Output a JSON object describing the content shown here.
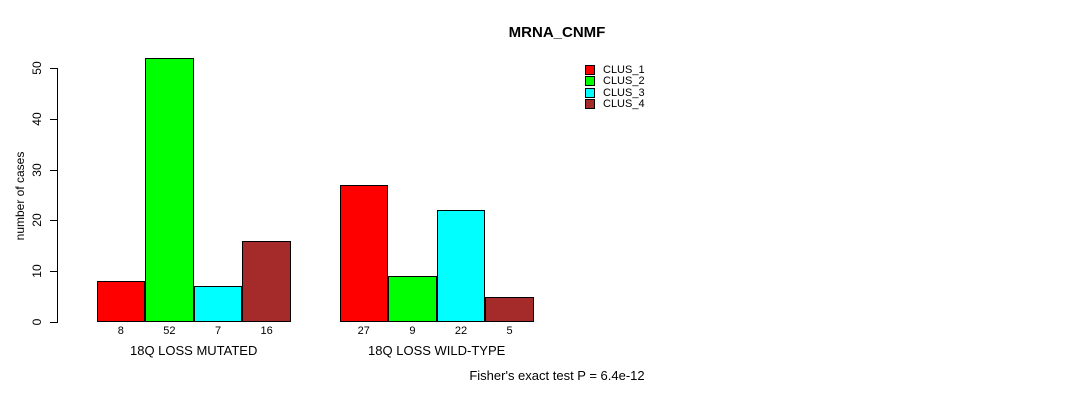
{
  "chart_data": {
    "type": "bar",
    "title": "MRNA_CNMF",
    "ylabel": "number of cases",
    "xlabel": "",
    "ylim": [
      0,
      50
    ],
    "yticks": [
      0,
      10,
      20,
      30,
      40,
      50
    ],
    "grid": false,
    "legend_position": "top-right",
    "bar_value_labels": true,
    "groups": [
      "18Q LOSS MUTATED",
      "18Q LOSS WILD-TYPE"
    ],
    "series": [
      {
        "name": "CLUS_1",
        "color": "#FF0000",
        "values": [
          8,
          27
        ]
      },
      {
        "name": "CLUS_2",
        "color": "#00FF00",
        "values": [
          52,
          9
        ]
      },
      {
        "name": "CLUS_3",
        "color": "#00FFFF",
        "values": [
          7,
          22
        ]
      },
      {
        "name": "CLUS_4",
        "color": "#A52A2A",
        "values": [
          16,
          5
        ]
      }
    ],
    "annotation": "Fisher's exact test P = 6.4e-12",
    "colors": {
      "axis": "#000000",
      "text": "#000000",
      "background": "#FFFFFF"
    }
  }
}
